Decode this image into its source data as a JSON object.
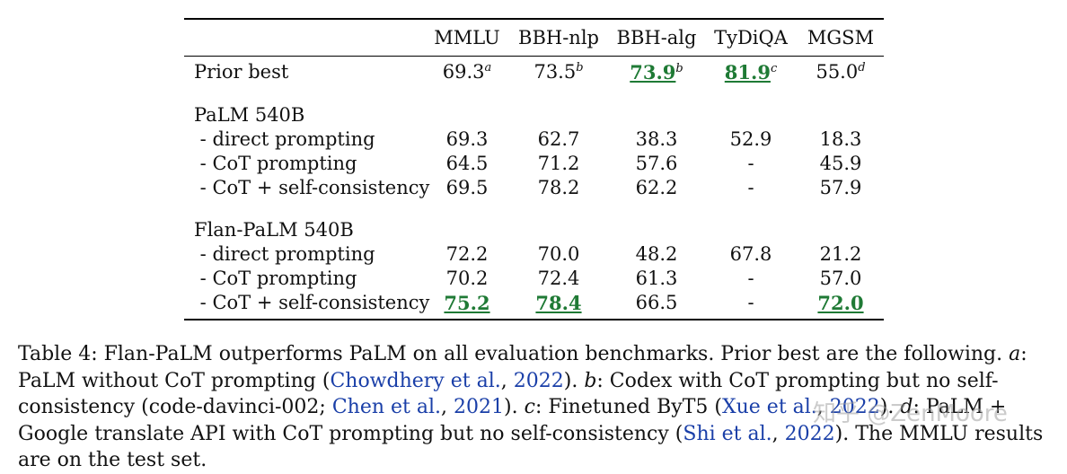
{
  "columns": [
    "MMLU",
    "BBH-nlp",
    "BBH-alg",
    "TyDiQA",
    "MGSM"
  ],
  "prior_best": {
    "label": "Prior best",
    "values": [
      {
        "v": "69.3",
        "sup": "a"
      },
      {
        "v": "73.5",
        "sup": "b"
      },
      {
        "v": "73.9",
        "sup": "b"
      },
      {
        "v": "81.9",
        "sup": "c"
      },
      {
        "v": "55.0",
        "sup": "d"
      }
    ]
  },
  "groups": [
    {
      "name": "PaLM 540B",
      "rows": [
        {
          "label": " - direct prompting",
          "values": [
            "69.3",
            "62.7",
            "38.3",
            "52.9",
            "18.3"
          ]
        },
        {
          "label": " - CoT prompting",
          "values": [
            "64.5",
            "71.2",
            "57.6",
            "-",
            "45.9"
          ]
        },
        {
          "label": " - CoT + self-consistency",
          "values": [
            "69.5",
            "78.2",
            "62.2",
            "-",
            "57.9"
          ]
        }
      ]
    },
    {
      "name": "Flan-PaLM 540B",
      "rows": [
        {
          "label": " - direct prompting",
          "values": [
            "72.2",
            "70.0",
            "48.2",
            "67.8",
            "21.2"
          ]
        },
        {
          "label": " - CoT prompting",
          "values": [
            "70.2",
            "72.4",
            "61.3",
            "-",
            "57.0"
          ]
        },
        {
          "label": " - CoT + self-consistency",
          "values": [
            "75.2",
            "78.4",
            "66.5",
            "-",
            "72.0"
          ]
        }
      ]
    }
  ],
  "caption": {
    "t1": "Table 4: Flan-PaLM outperforms PaLM on all evaluation benchmarks. Prior best are the following. ",
    "a": "a",
    "t2": ": PaLM without CoT prompting (",
    "ref1": "Chowdhery et al.",
    "t3": ", ",
    "ref1y": "2022",
    "t4": "). ",
    "b": "b",
    "t5": ": Codex with CoT prompting but no self-consistency (code-davinci-002; ",
    "ref2": "Chen et al.",
    "t6": ", ",
    "ref2y": "2021",
    "t7": "). ",
    "c": "c",
    "t8": ": Finetuned ByT5 (",
    "ref3": "Xue et al.",
    "t9": ", ",
    "ref3y": "2022",
    "t10": "). ",
    "d": "d",
    "t11": ": PaLM + Google translate API with CoT prompting but no self-consistency (",
    "ref4": "Shi et al.",
    "t12": ", ",
    "ref4y": "2022",
    "t13": "). The MMLU results are on the test set."
  },
  "watermark": "知乎 @ZenMoore"
}
